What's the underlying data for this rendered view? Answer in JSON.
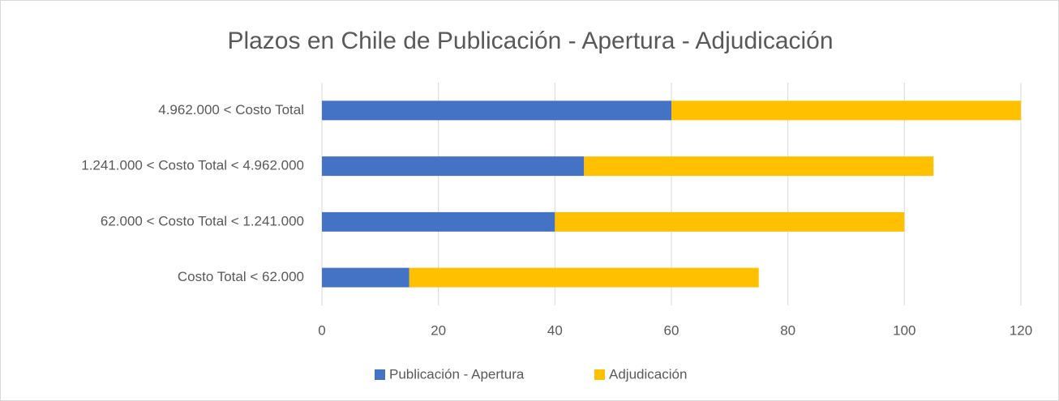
{
  "chart_data": {
    "type": "stacked_bar_horizontal",
    "title": "Plazos en Chile de Publicación - Apertura - Adjudicación",
    "categories": [
      "4.962.000 < Costo Total",
      "1.241.000 < Costo Total < 4.962.000",
      "62.000 < Costo Total < 1.241.000",
      "Costo Total < 62.000"
    ],
    "series": [
      {
        "name": "Publicación - Apertura",
        "color": "#4472c4",
        "values": [
          60,
          45,
          40,
          15
        ]
      },
      {
        "name": "Adjudicación",
        "color": "#ffc000",
        "values": [
          60,
          60,
          60,
          60
        ]
      }
    ],
    "xlim": [
      0,
      120
    ],
    "xticks": [
      0,
      20,
      40,
      60,
      80,
      100,
      120
    ],
    "grid": true,
    "legend": "bottom"
  }
}
